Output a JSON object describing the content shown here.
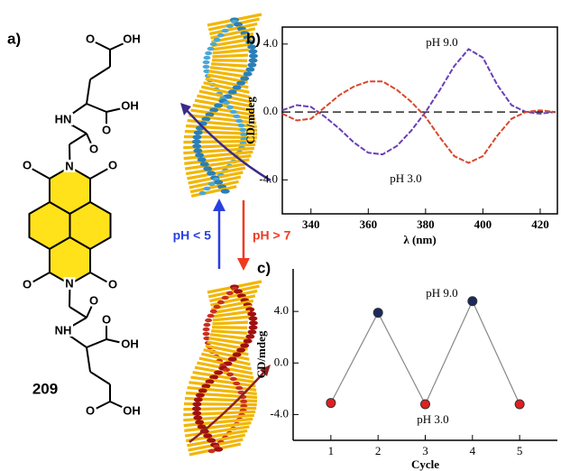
{
  "figure": {
    "panel_a": "a)",
    "compound": "209",
    "arrow_up_label": "pH < 5",
    "arrow_down_label": "pH > 7",
    "atoms": [
      "O",
      "OH",
      "OH",
      "O",
      "HN",
      "O",
      "N",
      "O",
      "O",
      "O",
      "O",
      "N",
      "O",
      "NH",
      "OH",
      "O",
      "O",
      "OH"
    ]
  },
  "chart_data": [
    {
      "type": "line",
      "panel_label": "b)",
      "xlabel": "λ (nm)",
      "ylabel": "CD/mdeg",
      "x": [
        330,
        335,
        340,
        345,
        350,
        355,
        360,
        365,
        370,
        375,
        380,
        385,
        390,
        395,
        400,
        405,
        410,
        415,
        420,
        425
      ],
      "series": [
        {
          "name": "pH 9.0",
          "color": "#6a3fb5",
          "values": [
            0.1,
            0.4,
            0.3,
            -0.3,
            -1.0,
            -1.8,
            -2.4,
            -2.5,
            -2.0,
            -1.1,
            0.0,
            1.3,
            2.7,
            3.7,
            3.2,
            1.6,
            0.4,
            0,
            -0.1,
            0
          ]
        },
        {
          "name": "pH 3.0",
          "color": "#d9472b",
          "values": [
            -0.1,
            -0.5,
            -0.4,
            0.3,
            1.0,
            1.5,
            1.8,
            1.8,
            1.3,
            0.6,
            -0.3,
            -1.5,
            -2.6,
            -3.0,
            -2.6,
            -1.4,
            -0.4,
            0,
            0.1,
            0
          ]
        }
      ],
      "xlim": [
        330,
        426
      ],
      "ylim": [
        -6,
        5
      ],
      "xticks": [
        340,
        360,
        380,
        400,
        420
      ],
      "yticks": [
        {
          "value": -4,
          "label": "-4.0"
        },
        {
          "value": 0,
          "label": "0.0"
        },
        {
          "value": 4,
          "label": "4.0"
        }
      ]
    },
    {
      "type": "line",
      "panel_label": "c)",
      "xlabel": "Cycle",
      "ylabel": "CD/mdeg",
      "annotations": [
        "pH 9.0",
        "pH 3.0"
      ],
      "x": [
        1,
        2,
        3,
        4,
        5
      ],
      "values": [
        -3.1,
        3.9,
        -3.2,
        4.8,
        -3.2
      ],
      "colors": [
        "#e02020",
        "#1b2a5e",
        "#e02020",
        "#1b2a5e",
        "#e02020"
      ],
      "line_color": "#888888",
      "xlim": [
        0.2,
        5.8
      ],
      "ylim": [
        -6,
        7.3
      ],
      "xticks": [
        1,
        2,
        3,
        4,
        5
      ],
      "yticks": [
        {
          "value": -4,
          "label": "-4.0"
        },
        {
          "value": 0,
          "label": "0.0"
        },
        {
          "value": 4,
          "label": "4.0"
        }
      ]
    }
  ]
}
